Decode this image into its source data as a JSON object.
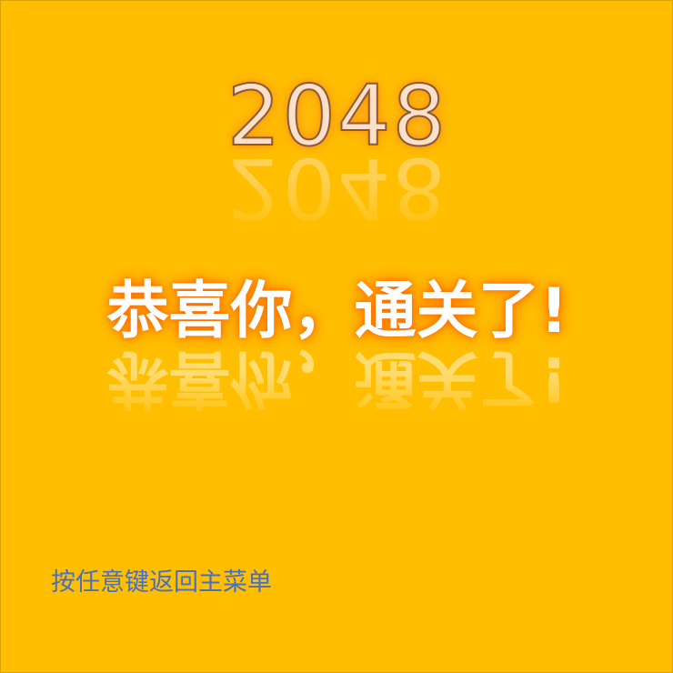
{
  "game": {
    "title": "2048",
    "message": "恭喜你，通关了!",
    "hint": "按任意键返回主菜单"
  },
  "colors": {
    "background": "#ffbf00",
    "title_fill": "#fde0c8",
    "title_glow": "#ff8a00",
    "message_fill": "#ffffff",
    "message_glow": "#ff6a00",
    "hint_text": "#4a6fbf"
  }
}
